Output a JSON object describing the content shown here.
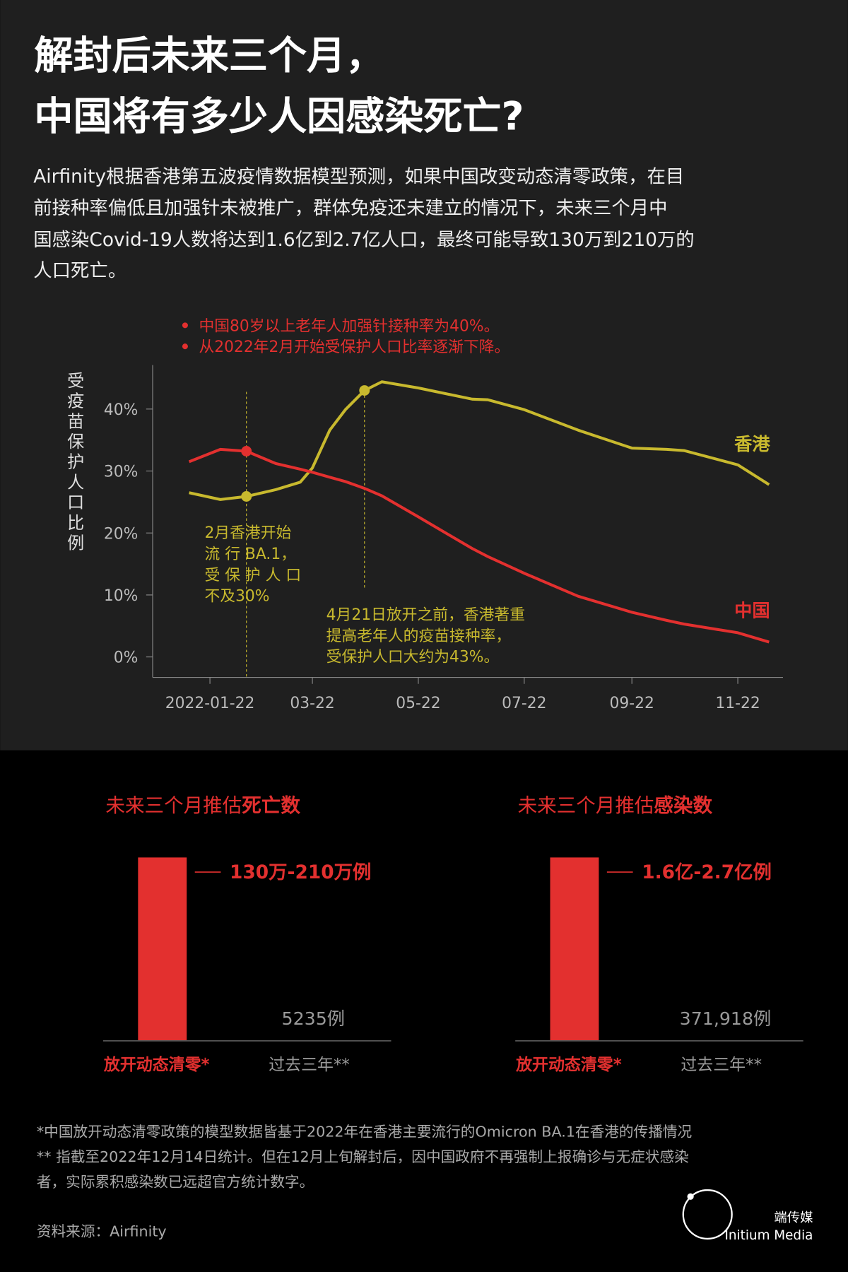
{
  "header": {
    "title": [
      "解封后未来三个月，",
      "中国将有多少人因感染死亡?"
    ],
    "intro": [
      "Airfinity根据香港第五波疫情数据模型预测，如果中国改变动态清零政策，在目",
      "前接种率偏低且加强针未被推广，群体免疫还未建立的情况下，未来三个月中",
      "国感染Covid-19人数将达到1.6亿到2.7亿人口，最终可能导致130万到210万的",
      "人口死亡。"
    ]
  },
  "chart_data": [
    {
      "type": "line",
      "notes": [
        "中国80岁以上老年人加强针接种率为40%。",
        "从2022年2月开始受保护人口比率逐渐下降。"
      ],
      "y_label": "受疫苗保护人口比例",
      "x": [
        "2022-01-10",
        "2022-01-28",
        "2022-02-12",
        "2022-03-01",
        "2022-03-15",
        "2022-03-22",
        "2022-04-01",
        "2022-04-10",
        "2022-04-21",
        "2022-05-01",
        "2022-05-22",
        "2022-06-22",
        "2022-07-01",
        "2022-07-22",
        "2022-08-22",
        "2022-09-22",
        "2022-10-12",
        "2022-10-22",
        "2022-11-22",
        "2022-12-10"
      ],
      "xlim": [
        "2021-12-20",
        "2022-12-18"
      ],
      "xticks": [
        "2022-01-22",
        {
          "value": "2022-03-22",
          "label": "03-22"
        },
        {
          "value": "2022-05-22",
          "label": "05-22"
        },
        {
          "value": "2022-07-22",
          "label": "07-22"
        },
        {
          "value": "2022-09-22",
          "label": "09-22"
        },
        {
          "value": "2022-11-22",
          "label": "11-22"
        }
      ],
      "ylim": [
        -3.3,
        47.1
      ],
      "yticks": [
        {
          "value": 0,
          "label": "0%"
        },
        {
          "value": 10,
          "label": "10%"
        },
        {
          "value": 20,
          "label": "20%"
        },
        {
          "value": 30,
          "label": "30%"
        },
        {
          "value": 40,
          "label": "40%"
        }
      ],
      "series": [
        {
          "name": "香港",
          "color": "#c8b92e",
          "values": [
            26.5,
            25.4,
            25.9,
            27,
            28.2,
            30.5,
            36.6,
            39.9,
            43,
            44.4,
            43.4,
            41.6,
            41.5,
            39.9,
            36.6,
            33.7,
            33.5,
            33.3,
            31,
            27.8
          ]
        },
        {
          "name": "中国",
          "color": "#e3302f",
          "values": [
            31.5,
            33.5,
            33.2,
            31.2,
            30.3,
            29.8,
            29,
            28.3,
            27.2,
            26,
            22.6,
            17.5,
            16.2,
            13.5,
            9.8,
            7.2,
            5.9,
            5.3,
            3.9,
            2.4
          ]
        }
      ],
      "annotations": [
        {
          "x": "2022-02-12",
          "series": [
            0,
            1
          ],
          "lines": [
            "2月香港开始",
            "流 行 BA.1，",
            "受 保 护 人 口",
            "不及30%"
          ]
        },
        {
          "x": "2022-04-21",
          "series": [
            0
          ],
          "lines": [
            "4月21日放开之前，香港著重",
            "提高老年人的疫苗接种率，",
            "受保护人口大约为43%。"
          ]
        }
      ]
    },
    {
      "type": "bar",
      "title": [
        "未来三个月推估",
        "死亡数"
      ],
      "categories": [
        "放开动态清零*",
        "过去三年**"
      ],
      "values": [
        2100000,
        5235
      ],
      "value_labels": [
        "130万-210万例",
        "5235例"
      ],
      "ylim": [
        0,
        2100000
      ],
      "colors": [
        "#e3302f",
        "#888888"
      ]
    },
    {
      "type": "bar",
      "title": [
        "未来三个月推估",
        "感染数"
      ],
      "categories": [
        "放开动态清零*",
        "过去三年**"
      ],
      "values": [
        270000000,
        371918
      ],
      "value_labels": [
        "1.6亿-2.7亿例",
        "371,918例"
      ],
      "ylim": [
        0,
        270000000
      ],
      "colors": [
        "#e3302f",
        "#888888"
      ]
    }
  ],
  "footnotes": [
    "*中国放开动态清零政策的模型数据皆基于2022年在香港主要流行的Omicron BA.1在香港的传播情况",
    "** 指截至2022年12月14日统计。但在12月上旬解封后，因中国政府不再强制上报确诊与无症状感染",
    "者，实际累积感染数已远超官方统计数字。"
  ],
  "source": "资料来源：Airfinity",
  "brand": {
    "name": "端传媒",
    "name_en": "Initium Media"
  }
}
